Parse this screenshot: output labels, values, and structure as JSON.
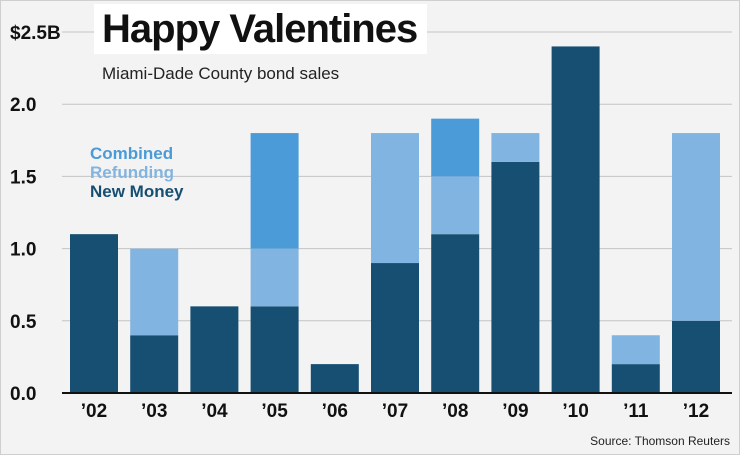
{
  "chart_data": {
    "type": "bar",
    "stacked": true,
    "title": "Happy Valentines",
    "subtitle": "Miami-Dade County bond sales",
    "source": "Source: Thomson Reuters",
    "categories": [
      "’02",
      "’03",
      "’04",
      "’05",
      "’06",
      "’07",
      "’08",
      "’09",
      "’10",
      "’11",
      "’12"
    ],
    "series": [
      {
        "name": "New Money",
        "color": "#164f72",
        "values": [
          1.1,
          0.4,
          0.6,
          0.6,
          0.2,
          0.9,
          1.1,
          1.6,
          2.4,
          0.2,
          0.5
        ]
      },
      {
        "name": "Refunding",
        "color": "#82b4e1",
        "values": [
          0,
          0.6,
          0,
          0.4,
          0,
          0.9,
          0.4,
          0.2,
          0,
          0.2,
          1.3
        ]
      },
      {
        "name": "Combined",
        "color": "#4a9bd7",
        "values": [
          0,
          0,
          0,
          0.8,
          0,
          0,
          0.4,
          0,
          0,
          0,
          0
        ]
      }
    ],
    "legend_order": [
      "Combined",
      "Refunding",
      "New Money"
    ],
    "legend_placement": "top-left",
    "ylim": [
      0,
      2.5
    ],
    "yticks": [
      0,
      0.5,
      1,
      1.5,
      2,
      2.5
    ],
    "ytick_labels": [
      "0.0",
      "0.5",
      "1.0",
      "1.5",
      "2.0",
      "$2.5B"
    ],
    "grid": true
  }
}
